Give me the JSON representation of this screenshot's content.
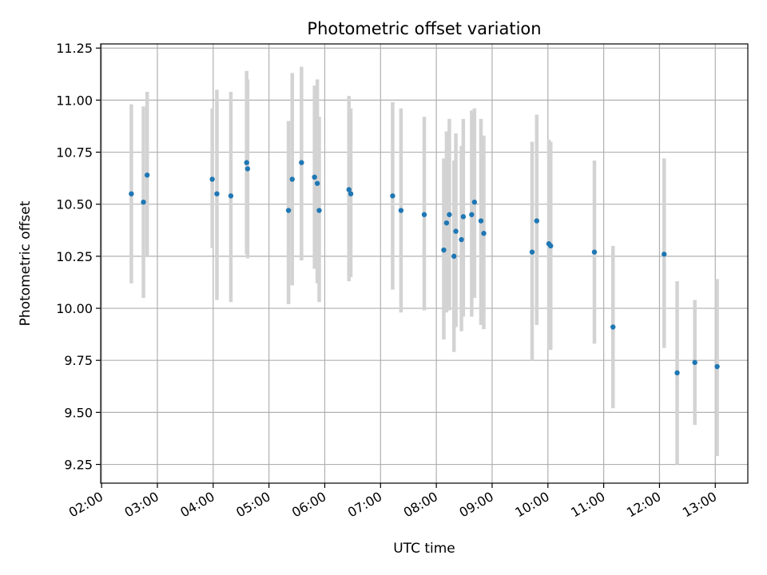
{
  "chart_data": {
    "type": "scatter",
    "title": "Photometric offset variation",
    "xlabel": "UTC time",
    "ylabel": "Photometric offset",
    "x_unit": "UTC time (HH:MM)",
    "xlim": [
      "01:59",
      "13:35"
    ],
    "ylim": [
      9.16,
      11.27
    ],
    "x_ticks": [
      "02:00",
      "03:00",
      "04:00",
      "05:00",
      "06:00",
      "07:00",
      "08:00",
      "09:00",
      "10:00",
      "11:00",
      "12:00",
      "13:00"
    ],
    "y_ticks": [
      9.25,
      9.5,
      9.75,
      10.0,
      10.25,
      10.5,
      10.75,
      11.0,
      11.25
    ],
    "grid": true,
    "point_color": "#1f77b4",
    "errorbar_color": "#d3d3d3",
    "points": [
      {
        "x": "02:32",
        "y": 10.55,
        "lo": 10.12,
        "hi": 10.98
      },
      {
        "x": "02:45",
        "y": 10.51,
        "lo": 10.05,
        "hi": 10.97
      },
      {
        "x": "02:49",
        "y": 10.64,
        "lo": 10.25,
        "hi": 11.04
      },
      {
        "x": "03:59",
        "y": 10.62,
        "lo": 10.29,
        "hi": 10.96
      },
      {
        "x": "04:04",
        "y": 10.55,
        "lo": 10.04,
        "hi": 11.05
      },
      {
        "x": "04:19",
        "y": 10.54,
        "lo": 10.03,
        "hi": 11.04
      },
      {
        "x": "04:36",
        "y": 10.7,
        "lo": 10.26,
        "hi": 11.14
      },
      {
        "x": "04:37",
        "y": 10.67,
        "lo": 10.24,
        "hi": 11.1
      },
      {
        "x": "05:21",
        "y": 10.47,
        "lo": 10.02,
        "hi": 10.9
      },
      {
        "x": "05:25",
        "y": 10.62,
        "lo": 10.11,
        "hi": 11.13
      },
      {
        "x": "05:35",
        "y": 10.7,
        "lo": 10.23,
        "hi": 11.16
      },
      {
        "x": "05:49",
        "y": 10.63,
        "lo": 10.19,
        "hi": 11.07
      },
      {
        "x": "05:52",
        "y": 10.6,
        "lo": 10.12,
        "hi": 11.1
      },
      {
        "x": "05:54",
        "y": 10.47,
        "lo": 10.03,
        "hi": 10.92
      },
      {
        "x": "06:26",
        "y": 10.57,
        "lo": 10.13,
        "hi": 11.02
      },
      {
        "x": "06:28",
        "y": 10.55,
        "lo": 10.15,
        "hi": 10.96
      },
      {
        "x": "07:13",
        "y": 10.54,
        "lo": 10.09,
        "hi": 10.99
      },
      {
        "x": "07:22",
        "y": 10.47,
        "lo": 9.98,
        "hi": 10.96
      },
      {
        "x": "07:47",
        "y": 10.45,
        "lo": 9.99,
        "hi": 10.92
      },
      {
        "x": "08:08",
        "y": 10.28,
        "lo": 9.85,
        "hi": 10.72
      },
      {
        "x": "08:11",
        "y": 10.41,
        "lo": 9.98,
        "hi": 10.85
      },
      {
        "x": "08:14",
        "y": 10.45,
        "lo": 9.99,
        "hi": 10.91
      },
      {
        "x": "08:19",
        "y": 10.25,
        "lo": 9.79,
        "hi": 10.71
      },
      {
        "x": "08:21",
        "y": 10.37,
        "lo": 9.91,
        "hi": 10.84
      },
      {
        "x": "08:27",
        "y": 10.33,
        "lo": 9.89,
        "hi": 10.78
      },
      {
        "x": "08:29",
        "y": 10.44,
        "lo": 9.96,
        "hi": 10.91
      },
      {
        "x": "08:38",
        "y": 10.45,
        "lo": 9.96,
        "hi": 10.95
      },
      {
        "x": "08:41",
        "y": 10.51,
        "lo": 10.05,
        "hi": 10.96
      },
      {
        "x": "08:48",
        "y": 10.42,
        "lo": 9.92,
        "hi": 10.91
      },
      {
        "x": "08:51",
        "y": 10.36,
        "lo": 9.9,
        "hi": 10.83
      },
      {
        "x": "09:43",
        "y": 10.27,
        "lo": 9.75,
        "hi": 10.8
      },
      {
        "x": "09:48",
        "y": 10.42,
        "lo": 9.92,
        "hi": 10.93
      },
      {
        "x": "10:01",
        "y": 10.31,
        "lo": 9.8,
        "hi": 10.81
      },
      {
        "x": "10:03",
        "y": 10.3,
        "lo": 9.8,
        "hi": 10.8
      },
      {
        "x": "10:50",
        "y": 10.27,
        "lo": 9.83,
        "hi": 10.71
      },
      {
        "x": "11:10",
        "y": 9.91,
        "lo": 9.52,
        "hi": 10.3
      },
      {
        "x": "12:05",
        "y": 10.26,
        "lo": 9.81,
        "hi": 10.72
      },
      {
        "x": "12:19",
        "y": 9.69,
        "lo": 9.25,
        "hi": 10.13
      },
      {
        "x": "12:38",
        "y": 9.74,
        "lo": 9.44,
        "hi": 10.04
      },
      {
        "x": "13:02",
        "y": 9.72,
        "lo": 9.29,
        "hi": 10.14
      }
    ]
  }
}
